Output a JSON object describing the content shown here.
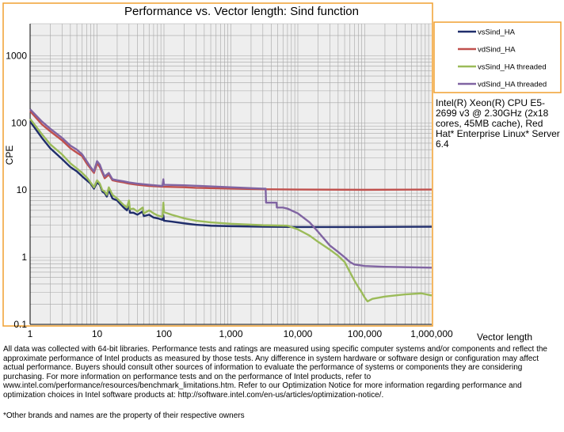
{
  "chart_data": {
    "type": "line",
    "title": "Performance vs. Vector length: Sind function",
    "ylabel": "CPE",
    "xlabel": "Vector length",
    "x_scale": "log",
    "y_scale": "log",
    "xlim": [
      1,
      1000000
    ],
    "ylim": [
      0.1,
      3000
    ],
    "x_ticks": [
      1,
      10,
      100,
      1000,
      10000,
      100000,
      1000000
    ],
    "x_tick_labels": [
      "1",
      "10",
      "100",
      "1,000",
      "10,000",
      "100,000",
      "1,000,000"
    ],
    "y_ticks": [
      0.1,
      1,
      10,
      100,
      1000
    ],
    "y_tick_labels": [
      "0.1",
      "1",
      "10",
      "100",
      "1000"
    ],
    "grid": true,
    "legend_position": "right",
    "series": [
      {
        "name": "vsSind_HA",
        "color": "#1f2d6b",
        "points": [
          [
            1,
            105
          ],
          [
            1.5,
            60
          ],
          [
            2,
            42
          ],
          [
            3,
            29
          ],
          [
            4,
            22
          ],
          [
            5,
            19
          ],
          [
            6,
            16
          ],
          [
            7,
            14
          ],
          [
            8,
            12.5
          ],
          [
            9,
            10.5
          ],
          [
            10,
            13
          ],
          [
            11,
            12
          ],
          [
            12,
            9.5
          ],
          [
            13,
            9
          ],
          [
            14,
            8
          ],
          [
            15,
            10
          ],
          [
            17,
            7.5
          ],
          [
            20,
            7
          ],
          [
            23,
            6
          ],
          [
            25,
            5.5
          ],
          [
            28,
            5
          ],
          [
            30,
            6.2
          ],
          [
            31,
            4.6
          ],
          [
            35,
            4.6
          ],
          [
            40,
            4.3
          ],
          [
            48,
            4.8
          ],
          [
            50,
            4.1
          ],
          [
            60,
            4.3
          ],
          [
            70,
            3.9
          ],
          [
            80,
            3.8
          ],
          [
            95,
            3.6
          ],
          [
            98,
            4.2
          ],
          [
            100,
            3.5
          ],
          [
            130,
            3.4
          ],
          [
            200,
            3.2
          ],
          [
            300,
            3.05
          ],
          [
            500,
            2.95
          ],
          [
            1000,
            2.9
          ],
          [
            3000,
            2.85
          ],
          [
            10000,
            2.82
          ],
          [
            100000,
            2.82
          ],
          [
            1000000,
            2.85
          ]
        ]
      },
      {
        "name": "vdSind_HA",
        "color": "#c0504d",
        "points": [
          [
            1,
            150
          ],
          [
            1.5,
            95
          ],
          [
            2,
            75
          ],
          [
            3,
            55
          ],
          [
            4,
            42
          ],
          [
            5,
            36
          ],
          [
            6,
            32
          ],
          [
            7,
            25
          ],
          [
            8,
            21
          ],
          [
            9,
            18
          ],
          [
            10,
            25
          ],
          [
            11,
            22
          ],
          [
            12,
            18
          ],
          [
            13,
            15
          ],
          [
            15,
            17
          ],
          [
            17,
            14
          ],
          [
            20,
            13.5
          ],
          [
            25,
            13
          ],
          [
            30,
            12.5
          ],
          [
            40,
            12
          ],
          [
            60,
            11.5
          ],
          [
            100,
            11.2
          ],
          [
            200,
            11
          ],
          [
            300,
            10.8
          ],
          [
            1000,
            10.5
          ],
          [
            3000,
            10.3
          ],
          [
            10000,
            10.2
          ],
          [
            100000,
            10.1
          ],
          [
            1000000,
            10.2
          ]
        ]
      },
      {
        "name": "vsSind_HA threaded",
        "color": "#9bbb59",
        "points": [
          [
            1,
            115
          ],
          [
            1.5,
            68
          ],
          [
            2,
            48
          ],
          [
            3,
            34
          ],
          [
            4,
            25
          ],
          [
            5,
            21
          ],
          [
            6,
            18
          ],
          [
            7,
            15.5
          ],
          [
            8,
            13
          ],
          [
            9,
            11
          ],
          [
            10,
            14
          ],
          [
            11,
            12.5
          ],
          [
            12,
            10
          ],
          [
            13,
            9.5
          ],
          [
            14,
            8.5
          ],
          [
            15,
            11
          ],
          [
            17,
            8.5
          ],
          [
            20,
            7.5
          ],
          [
            23,
            6.5
          ],
          [
            25,
            6
          ],
          [
            28,
            5.5
          ],
          [
            30,
            7
          ],
          [
            31,
            5.2
          ],
          [
            35,
            5.3
          ],
          [
            40,
            4.8
          ],
          [
            48,
            5.5
          ],
          [
            50,
            4.5
          ],
          [
            60,
            5
          ],
          [
            70,
            4.5
          ],
          [
            80,
            4.2
          ],
          [
            95,
            4
          ],
          [
            98,
            6.5
          ],
          [
            100,
            4.7
          ],
          [
            130,
            4.3
          ],
          [
            200,
            3.8
          ],
          [
            300,
            3.5
          ],
          [
            500,
            3.3
          ],
          [
            1000,
            3.15
          ],
          [
            3000,
            3
          ],
          [
            7000,
            2.95
          ],
          [
            10000,
            2.6
          ],
          [
            15000,
            2.1
          ],
          [
            20000,
            1.7
          ],
          [
            30000,
            1.3
          ],
          [
            40000,
            1.05
          ],
          [
            50000,
            0.85
          ],
          [
            60000,
            0.6
          ],
          [
            70000,
            0.45
          ],
          [
            80000,
            0.36
          ],
          [
            90000,
            0.3
          ],
          [
            100000,
            0.25
          ],
          [
            110000,
            0.22
          ],
          [
            130000,
            0.24
          ],
          [
            200000,
            0.26
          ],
          [
            400000,
            0.28
          ],
          [
            700000,
            0.29
          ],
          [
            1000000,
            0.27
          ]
        ]
      },
      {
        "name": "vdSind_HA threaded",
        "color": "#8064a2",
        "points": [
          [
            1,
            160
          ],
          [
            1.5,
            105
          ],
          [
            2,
            82
          ],
          [
            3,
            60
          ],
          [
            4,
            46
          ],
          [
            5,
            40
          ],
          [
            6,
            34
          ],
          [
            7,
            27
          ],
          [
            8,
            22
          ],
          [
            9,
            19
          ],
          [
            10,
            27
          ],
          [
            11,
            24
          ],
          [
            12,
            19
          ],
          [
            13,
            16
          ],
          [
            15,
            18
          ],
          [
            17,
            14.5
          ],
          [
            20,
            14
          ],
          [
            25,
            13.5
          ],
          [
            30,
            13
          ],
          [
            40,
            12.5
          ],
          [
            60,
            12
          ],
          [
            95,
            11.5
          ],
          [
            98,
            14.5
          ],
          [
            100,
            12
          ],
          [
            200,
            11.8
          ],
          [
            300,
            11.6
          ],
          [
            1000,
            11
          ],
          [
            3000,
            10.5
          ],
          [
            3300,
            10.5
          ],
          [
            3350,
            6.5
          ],
          [
            4800,
            6.5
          ],
          [
            4850,
            5.5
          ],
          [
            6000,
            5.5
          ],
          [
            7000,
            5.3
          ],
          [
            10000,
            4.5
          ],
          [
            15000,
            3.3
          ],
          [
            20000,
            2.4
          ],
          [
            30000,
            1.5
          ],
          [
            40000,
            1.2
          ],
          [
            50000,
            1
          ],
          [
            60000,
            0.85
          ],
          [
            70000,
            0.78
          ],
          [
            100000,
            0.74
          ],
          [
            200000,
            0.72
          ],
          [
            1000000,
            0.7
          ]
        ]
      }
    ]
  },
  "system_info": "Intel(R) Xeon(R) CPU E5-2699 v3 @ 2.30GHz (2x18 cores, 45MB cache), Red Hat* Enterprise Linux* Server 6.4",
  "disclaimer": "All data was collected with 64-bit libraries. Performance tests and ratings are measured using specific computer systems and/or components and reflect the approximate performance of Intel products as measured by those tests. Any difference in system hardware or software design or configuration may affect actual performance. Buyers should consult other sources of information to evaluate the performance of systems or components they are considering purchasing. For more information on performance tests and on the performance of Intel products, refer to www.intel.com/performance/resources/benchmark_limitations.htm. Refer to our Optimization Notice for more information regarding performance and optimization choices in Intel software products at: http://software.intel.com/en-us/articles/optimization-notice/.",
  "footnote": "*Other brands and names are the property of their respective owners",
  "colors": {
    "frame": "#f0a030",
    "plot_background": "#eeeeee",
    "grid": "#a6a6a6"
  }
}
